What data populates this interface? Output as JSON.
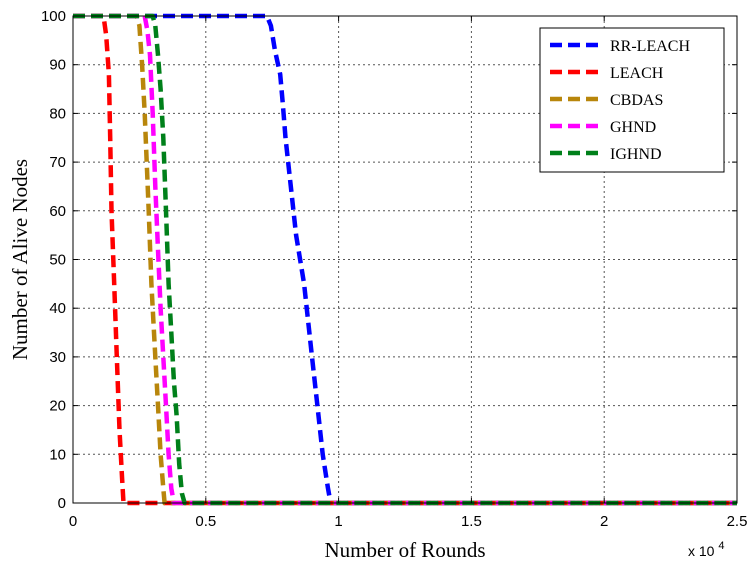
{
  "chart_data": {
    "type": "line",
    "xlabel": "Number of Rounds",
    "ylabel": "Number of Alive Nodes",
    "x_multiplier": {
      "base": "x 10",
      "exponent": "4"
    },
    "xlim": [
      0,
      2.5
    ],
    "ylim": [
      0,
      100
    ],
    "xticks": [
      0,
      0.5,
      1,
      1.5,
      2,
      2.5
    ],
    "xtick_labels": [
      "0",
      "0.5",
      "1",
      "1.5",
      "2",
      "2.5"
    ],
    "yticks": [
      0,
      10,
      20,
      30,
      40,
      50,
      60,
      70,
      80,
      90,
      100
    ],
    "ytick_labels": [
      "0",
      "10",
      "20",
      "30",
      "40",
      "50",
      "60",
      "70",
      "80",
      "90",
      "100"
    ],
    "grid": true,
    "legend_position": "top-right",
    "series": [
      {
        "name": "RR-LEACH",
        "color": "#0000ff",
        "points": [
          [
            0,
            100
          ],
          [
            0.73,
            100
          ],
          [
            0.745,
            98
          ],
          [
            0.76,
            93
          ],
          [
            0.78,
            88
          ],
          [
            0.79,
            82
          ],
          [
            0.8,
            75
          ],
          [
            0.82,
            65
          ],
          [
            0.84,
            55
          ],
          [
            0.87,
            45
          ],
          [
            0.9,
            30
          ],
          [
            0.92,
            20
          ],
          [
            0.94,
            10
          ],
          [
            0.96,
            3
          ],
          [
            0.97,
            0
          ],
          [
            2.5,
            0
          ]
        ]
      },
      {
        "name": "LEACH",
        "color": "#ff0000",
        "points": [
          [
            0,
            100
          ],
          [
            0.115,
            100
          ],
          [
            0.125,
            96
          ],
          [
            0.135,
            88
          ],
          [
            0.14,
            75
          ],
          [
            0.145,
            60
          ],
          [
            0.155,
            45
          ],
          [
            0.165,
            30
          ],
          [
            0.175,
            15
          ],
          [
            0.185,
            5
          ],
          [
            0.19,
            0
          ],
          [
            2.5,
            0
          ]
        ]
      },
      {
        "name": "CBDAS",
        "color": "#b8860b",
        "points": [
          [
            0,
            100
          ],
          [
            0.24,
            100
          ],
          [
            0.25,
            98
          ],
          [
            0.26,
            90
          ],
          [
            0.27,
            80
          ],
          [
            0.285,
            60
          ],
          [
            0.295,
            45
          ],
          [
            0.31,
            30
          ],
          [
            0.32,
            20
          ],
          [
            0.33,
            10
          ],
          [
            0.34,
            3
          ],
          [
            0.345,
            0
          ],
          [
            2.5,
            0
          ]
        ]
      },
      {
        "name": "GHND",
        "color": "#ff00ff",
        "points": [
          [
            0,
            100
          ],
          [
            0.27,
            100
          ],
          [
            0.28,
            97
          ],
          [
            0.29,
            92
          ],
          [
            0.3,
            80
          ],
          [
            0.31,
            65
          ],
          [
            0.32,
            52
          ],
          [
            0.33,
            40
          ],
          [
            0.34,
            30
          ],
          [
            0.35,
            20
          ],
          [
            0.36,
            10
          ],
          [
            0.37,
            3
          ],
          [
            0.38,
            0
          ],
          [
            2.5,
            0
          ]
        ]
      },
      {
        "name": "IGHND",
        "color": "#00801a",
        "points": [
          [
            0,
            100
          ],
          [
            0.3,
            100
          ],
          [
            0.31,
            98
          ],
          [
            0.32,
            92
          ],
          [
            0.33,
            85
          ],
          [
            0.34,
            75
          ],
          [
            0.35,
            60
          ],
          [
            0.36,
            45
          ],
          [
            0.37,
            35
          ],
          [
            0.38,
            25
          ],
          [
            0.39,
            18
          ],
          [
            0.4,
            8
          ],
          [
            0.41,
            2
          ],
          [
            0.42,
            0
          ],
          [
            2.5,
            0
          ]
        ]
      }
    ]
  }
}
